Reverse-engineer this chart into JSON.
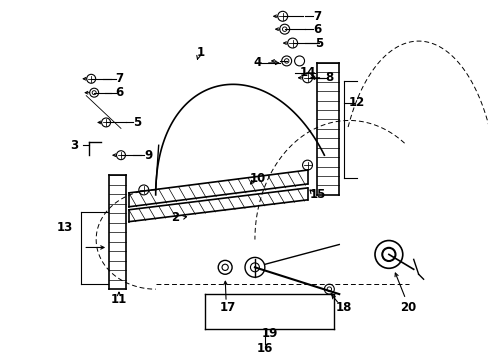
{
  "background_color": "#ffffff",
  "figure_size": [
    4.9,
    3.6
  ],
  "dpi": 100,
  "line_color": "#000000",
  "line_width": 0.8,
  "font_size": 8,
  "font_weight": "bold"
}
